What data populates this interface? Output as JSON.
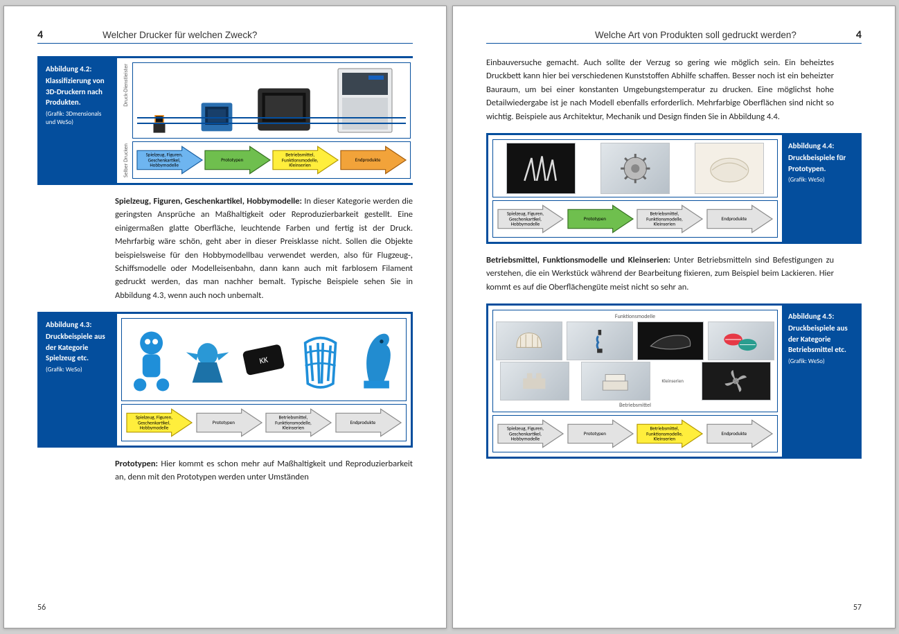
{
  "colors": {
    "brand_blue": "#044e9d",
    "arrow_blue": "#6eb5f0",
    "arrow_green": "#6fbf4e",
    "arrow_yellow": "#ffee3c",
    "arrow_orange": "#f2a33a",
    "arrow_grey": "#e3e3e3",
    "arrow_grey_stroke": "#8a8a8a",
    "page_bg": "#ffffff",
    "body_bg": "#d0d0d0"
  },
  "left_page": {
    "chapnum": "4",
    "chaptitle": "Welcher Drucker für welchen Zweck?",
    "page_number": "56",
    "fig42": {
      "caption_title": "Abbildung 4.2:",
      "caption_desc": "Klassifizierung von 3D-Druckern nach Produkten.",
      "caption_credit": "(Grafik: 3Dmensionals und WeSo)",
      "yaxis_top": "Druck-Dienstleister",
      "yaxis_bottom": "Selber Drucken",
      "arrows": [
        {
          "label": "Spielzeug, Figuren, Geschenkartikel, Hobbymodelle",
          "fill": "#6eb5f0",
          "stroke": "#1a5fa0"
        },
        {
          "label": "Prototypen",
          "fill": "#6fbf4e",
          "stroke": "#356f21"
        },
        {
          "label": "Betriebsmittel, Funktionsmodelle, Kleinserien",
          "fill": "#ffee3c",
          "stroke": "#b39800"
        },
        {
          "label": "Endprodukte",
          "fill": "#f2a33a",
          "stroke": "#a35c0b"
        }
      ]
    },
    "para1_lead": "Spielzeug, Figuren, Geschenkartikel, Hobbymodelle:",
    "para1_body": " In dieser Kate­gorie werden die geringsten Ansprüche an Maßhaltigkeit oder Repro­duzierbarkeit gestellt. Eine einigermaßen glatte Oberfläche, leuchtende Farben und fertig ist der Druck. Mehrfarbig wäre schön, geht aber in die­ser Preisklasse nicht. Sollen die Objekte beispielsweise für den Hobby­modellbau verwendet werden, also für Flugzeug-, Schiffsmodelle oder Modelleisenbahn, dann kann auch mit farblosem Filament gedruckt wer­den, das man nachher bemalt. Typische Beispiele sehen Sie in Abbildung 4.3, wenn auch noch unbemalt.",
    "fig43": {
      "caption_title": "Abbildung 4.3:",
      "caption_desc": "Druckbeispiele aus der Kategorie Spielzeug etc.",
      "caption_credit": "(Grafik: WeSo)",
      "arrows": [
        {
          "label": "Spielzeug, Figuren, Geschenkartikel, Hobbymodelle",
          "fill": "#ffee3c",
          "stroke": "#b39800"
        },
        {
          "label": "Prototypen",
          "fill": "#e3e3e3",
          "stroke": "#8a8a8a"
        },
        {
          "label": "Betriebsmittel, Funktionsmodelle, Kleinserien",
          "fill": "#e3e3e3",
          "stroke": "#8a8a8a"
        },
        {
          "label": "Endprodukte",
          "fill": "#e3e3e3",
          "stroke": "#8a8a8a"
        }
      ]
    },
    "para2_lead": "Prototypen:",
    "para2_body": " Hier kommt es schon mehr auf Maßhaltigkeit und Repro­duzierbarkeit an, denn mit den Prototypen werden unter Umständen"
  },
  "right_page": {
    "chapnum": "4",
    "chaptitle": "Welche Art von Produkten soll gedruckt werden?",
    "page_number": "57",
    "para1": "Einbauversuche gemacht. Auch sollte der Verzug so gering wie möglich sein. Ein beheiztes Druckbett kann hier bei verschiedenen Kunststoffen Abhilfe schaffen. Besser noch ist ein beheizter Bauraum, um bei einer konstanten Umgebungstemperatur zu drucken. Eine möglichst hohe Detailwiedergabe ist je nach Modell ebenfalls erforderlich. Mehrfarbige Oberflächen sind nicht so wichtig. Beispiele aus Architektur, Mechanik und Design finden Sie in Abbildung 4.4.",
    "fig44": {
      "caption_title": "Abbildung 4.4:",
      "caption_desc": "Druckbeispiele für Prototypen.",
      "caption_credit": "(Grafik: WeSo)",
      "arrows": [
        {
          "label": "Spielzeug, Figuren, Geschenkartikel, Hobbymodelle",
          "fill": "#e3e3e3",
          "stroke": "#8a8a8a"
        },
        {
          "label": "Prototypen",
          "fill": "#6fbf4e",
          "stroke": "#356f21"
        },
        {
          "label": "Betriebsmittel, Funktionsmodelle, Kleinserien",
          "fill": "#e3e3e3",
          "stroke": "#8a8a8a"
        },
        {
          "label": "Endprodukte",
          "fill": "#e3e3e3",
          "stroke": "#8a8a8a"
        }
      ]
    },
    "para2_lead": "Betriebsmittel, Funktionsmodelle und Kleinserien:",
    "para2_body": " Unter Betriebs­mitteln sind Befestigungen zu verstehen, die ein Werkstück während der Bearbeitung fixieren, zum Beispiel beim Lackieren. Hier kommt es auf die Oberflächengüte meist nicht so sehr an.",
    "fig45": {
      "caption_title": "Abbildung 4.5:",
      "caption_desc": "Druckbeispiele aus der Kategorie Betriebsmittel etc.",
      "caption_credit": "(Grafik: WeSo)",
      "label_top": "Funktionsmodelle",
      "label_mid": "Klein­serien",
      "label_bot": "Betriebsmittel",
      "arrows": [
        {
          "label": "Spielzeug, Figuren, Geschenkartikel, Hobbymodelle",
          "fill": "#e3e3e3",
          "stroke": "#8a8a8a"
        },
        {
          "label": "Prototypen",
          "fill": "#e3e3e3",
          "stroke": "#8a8a8a"
        },
        {
          "label": "Betriebsmittel, Funktionsmodelle, Kleinserien",
          "fill": "#ffee3c",
          "stroke": "#b39800"
        },
        {
          "label": "Endprodukte",
          "fill": "#e3e3e3",
          "stroke": "#8a8a8a"
        }
      ]
    }
  }
}
